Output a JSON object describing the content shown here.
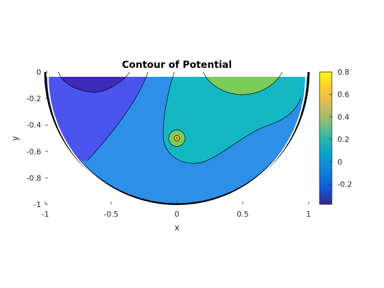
{
  "chart_data": {
    "type": "contour",
    "title": "Contour of Potential",
    "xlabel": "x",
    "ylabel": "y",
    "xlim": [
      -1,
      1
    ],
    "ylim": [
      -1,
      0
    ],
    "x_ticks": [
      -1,
      -0.5,
      0,
      0.5,
      1
    ],
    "x_tick_labels": [
      "-1",
      "-0.5",
      "0",
      "0.5",
      "1"
    ],
    "y_ticks": [
      0,
      -0.2,
      -0.4,
      -0.6,
      -0.8,
      -1
    ],
    "y_tick_labels": [
      "0",
      "-0.2",
      "-0.4",
      "-0.6",
      "-0.8",
      "-1"
    ],
    "domain": "half-disk (unit radius, y <= 0)",
    "colormap": "parula",
    "colorbar": {
      "limits": [
        -0.38,
        0.8
      ],
      "ticks": [
        -0.2,
        0,
        0.2,
        0.4,
        0.6,
        0.8
      ],
      "tick_labels": [
        "-0.2",
        "0",
        "0.2",
        "0.4",
        "0.6",
        "0.8"
      ]
    },
    "contour_levels": [
      -0.3,
      -0.2,
      -0.1,
      0.1,
      0.2,
      0.4
    ],
    "level_colors": {
      "lt_-0.3": "#3d2ab8",
      "-0.3_to_-0.2": "#4a55f0",
      "-0.1_to_0.1": "#2e8fe8",
      "0.1_to_0.2": "#14b8c4",
      "0.2_to_0.4": "#7ccc5a",
      "peak": "#f4d81c"
    },
    "features": [
      {
        "name": "negative lobe",
        "x": -0.62,
        "y": 0,
        "min_level": -0.38
      },
      {
        "name": "positive lobe",
        "x": 0.42,
        "y": 0,
        "max_level": 0.3
      },
      {
        "name": "point source",
        "x": 0.0,
        "y": -0.5
      }
    ]
  }
}
